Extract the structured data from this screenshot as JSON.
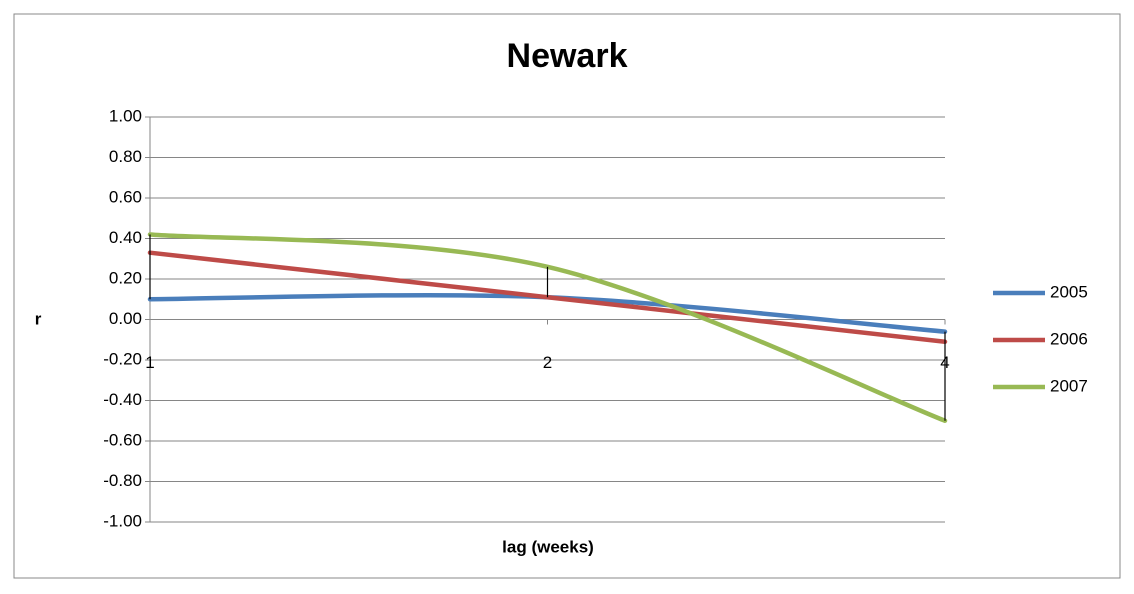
{
  "chart_data": {
    "type": "line",
    "title": "Newark",
    "x_label": "lag (weeks)",
    "y_label": "r",
    "categories": [
      "1",
      "2",
      "4"
    ],
    "series": [
      {
        "name": "2005",
        "color": "#4a7ebb",
        "values": [
          0.1,
          0.11,
          -0.06
        ]
      },
      {
        "name": "2006",
        "color": "#be4b48",
        "values": [
          0.33,
          0.11,
          -0.11
        ]
      },
      {
        "name": "2007",
        "color": "#98b954",
        "values": [
          0.42,
          0.26,
          -0.5
        ]
      }
    ],
    "ylim": [
      -1,
      1
    ],
    "yticks": [
      {
        "value": -1,
        "label": "-1.00"
      },
      {
        "value": -0.8,
        "label": "-0.80"
      },
      {
        "value": -0.6,
        "label": "-0.60"
      },
      {
        "value": -0.4,
        "label": "-0.40"
      },
      {
        "value": -0.2,
        "label": "-0.20"
      },
      {
        "value": 0,
        "label": "0.00"
      },
      {
        "value": 0.2,
        "label": "0.20"
      },
      {
        "value": 0.4,
        "label": "0.40"
      },
      {
        "value": 0.6,
        "label": "0.60"
      },
      {
        "value": 0.8,
        "label": "0.80"
      },
      {
        "value": 1,
        "label": "1.00"
      }
    ],
    "grid": true,
    "smooth": true,
    "high_low_lines": true,
    "legend": "right"
  }
}
